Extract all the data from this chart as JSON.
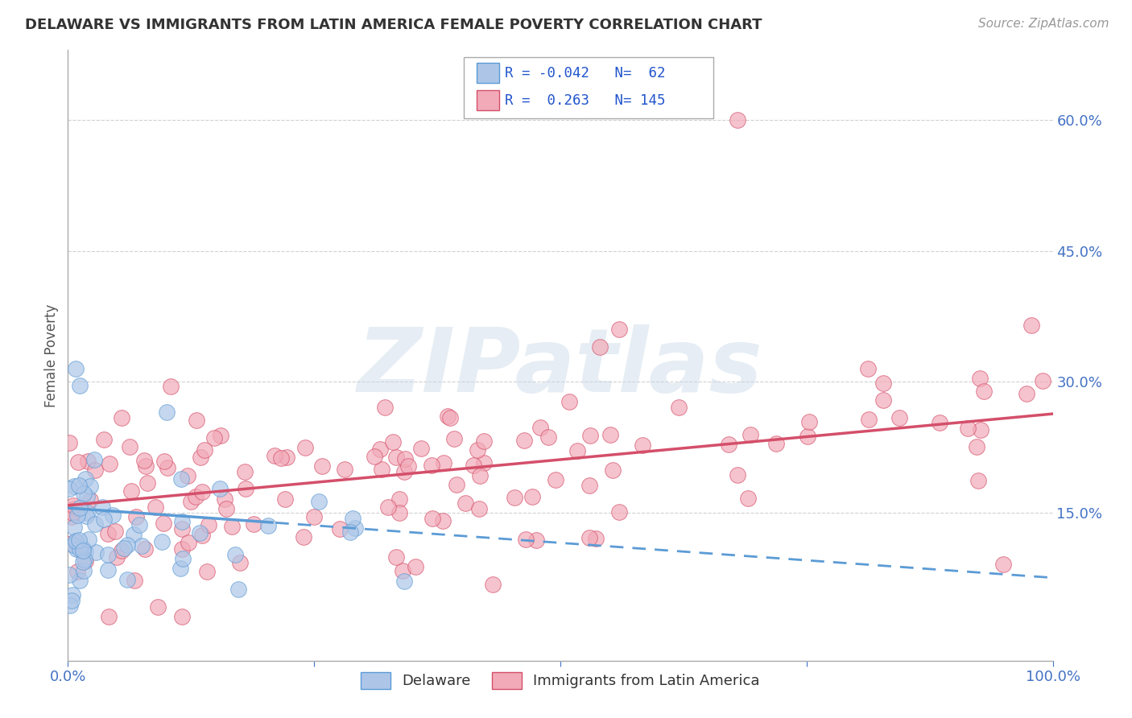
{
  "title": "DELAWARE VS IMMIGRANTS FROM LATIN AMERICA FEMALE POVERTY CORRELATION CHART",
  "source": "Source: ZipAtlas.com",
  "ylabel": "Female Poverty",
  "xlim": [
    0,
    1.0
  ],
  "ylim": [
    -0.02,
    0.68
  ],
  "ytick_positions": [
    0.15,
    0.3,
    0.45,
    0.6
  ],
  "ytick_labels": [
    "15.0%",
    "30.0%",
    "45.0%",
    "60.0%"
  ],
  "r_delaware": -0.042,
  "n_delaware": 62,
  "r_latin": 0.263,
  "n_latin": 145,
  "color_delaware": "#adc6e8",
  "color_latin": "#f2aab8",
  "line_color_delaware": "#5b9bd5",
  "line_color_latin": "#d44f6a",
  "watermark": "ZIPatlas",
  "background_color": "#ffffff",
  "grid_color": "#cccccc",
  "title_color": "#333333",
  "axis_label_color": "#555555",
  "ytick_label_color": "#4472c4",
  "xtick_label_color": "#4472c4",
  "del_line_intercept": 0.155,
  "del_line_slope": -0.08,
  "lat_line_intercept": 0.158,
  "lat_line_slope": 0.105
}
